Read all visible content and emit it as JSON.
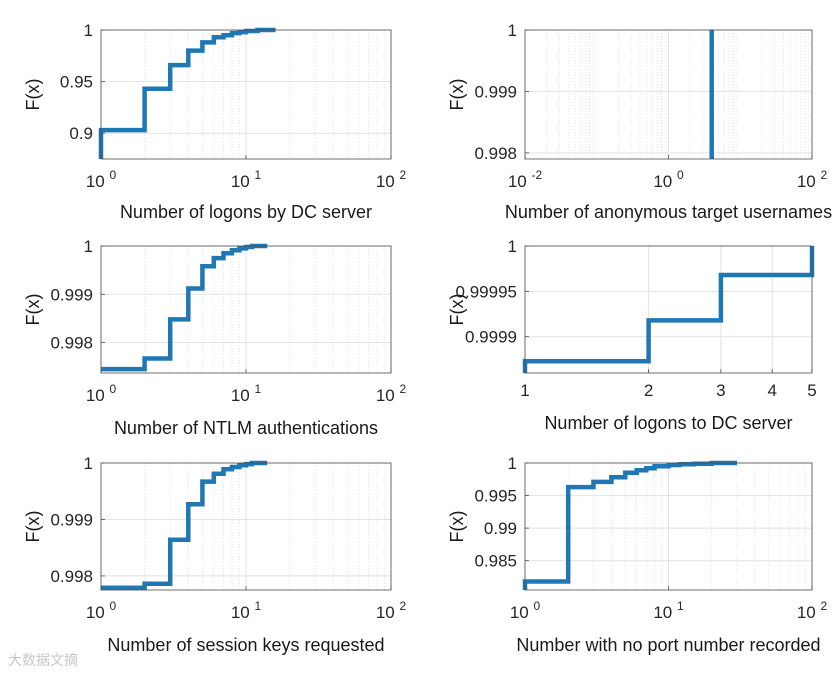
{
  "chart_data": [
    {
      "type": "line",
      "step": true,
      "xlabel": "Number of logons by DC server",
      "ylabel": "F(x)",
      "xscale": "log",
      "xlim": [
        1,
        100
      ],
      "xticks": [
        {
          "v": 1,
          "base": "10",
          "exp": "0"
        },
        {
          "v": 10,
          "base": "10",
          "exp": "1"
        },
        {
          "v": 100,
          "base": "10",
          "exp": "2"
        }
      ],
      "ylim": [
        0.875,
        1.0
      ],
      "yticks": [
        {
          "v": 0.9,
          "label": "0.9"
        },
        {
          "v": 0.95,
          "label": "0.95"
        },
        {
          "v": 1.0,
          "label": "1"
        }
      ],
      "grid": true,
      "color": "#1f77b4",
      "x": [
        1,
        1,
        2,
        3,
        4,
        5,
        6,
        7,
        8,
        9,
        10,
        12,
        16
      ],
      "y": [
        0.875,
        0.903,
        0.943,
        0.966,
        0.98,
        0.988,
        0.993,
        0.995,
        0.997,
        0.998,
        0.999,
        1.0,
        1.0
      ]
    },
    {
      "type": "line",
      "step": true,
      "xlabel": "Number of anonymous target usernames",
      "ylabel": "F(x)",
      "xscale": "log",
      "xlim": [
        0.01,
        100
      ],
      "xticks": [
        {
          "v": 0.01,
          "base": "10",
          "exp": "-2"
        },
        {
          "v": 1,
          "base": "10",
          "exp": "0"
        },
        {
          "v": 100,
          "base": "10",
          "exp": "2"
        }
      ],
      "ylim": [
        0.9979,
        1.0
      ],
      "yticks": [
        {
          "v": 0.998,
          "label": "0.998"
        },
        {
          "v": 0.999,
          "label": "0.999"
        },
        {
          "v": 1.0,
          "label": "1"
        }
      ],
      "grid": true,
      "color": "#1f77b4",
      "x": [
        4,
        4
      ],
      "y": [
        0.9979,
        1.0
      ]
    },
    {
      "type": "line",
      "step": true,
      "xlabel": "Number of NTLM authentications",
      "ylabel": "F(x)",
      "xscale": "log",
      "xlim": [
        1,
        100
      ],
      "xticks": [
        {
          "v": 1,
          "base": "10",
          "exp": "0"
        },
        {
          "v": 10,
          "base": "10",
          "exp": "1"
        },
        {
          "v": 100,
          "base": "10",
          "exp": "2"
        }
      ],
      "ylim": [
        0.99737,
        1.0
      ],
      "yticks": [
        {
          "v": 0.998,
          "label": "0.998"
        },
        {
          "v": 0.999,
          "label": "0.999"
        },
        {
          "v": 1.0,
          "label": "1"
        }
      ],
      "grid": true,
      "color": "#1f77b4",
      "x": [
        1,
        2,
        3,
        4,
        5,
        6,
        7,
        8,
        9,
        10,
        11,
        14
      ],
      "y": [
        0.99745,
        0.99767,
        0.99848,
        0.99912,
        0.99958,
        0.99975,
        0.99985,
        0.99991,
        0.99995,
        0.99998,
        1.0,
        1.0
      ]
    },
    {
      "type": "line",
      "step": true,
      "xlabel": "Number of logons to DC server",
      "ylabel": "F(x)",
      "xscale": "log",
      "xlim": [
        1,
        5
      ],
      "xticks": [
        {
          "v": 1,
          "label": "1"
        },
        {
          "v": 2,
          "label": "2"
        },
        {
          "v": 3,
          "label": "3"
        },
        {
          "v": 4,
          "label": "4"
        },
        {
          "v": 5,
          "label": "5"
        }
      ],
      "ylim": [
        0.99986,
        1.0
      ],
      "yticks": [
        {
          "v": 0.9999,
          "label": "0.9999"
        },
        {
          "v": 0.99995,
          "label": "0.99995"
        },
        {
          "v": 1.0,
          "label": "1"
        }
      ],
      "grid": true,
      "color": "#1f77b4",
      "x": [
        1,
        1,
        2,
        3,
        5,
        5
      ],
      "y": [
        0.99986,
        0.999873,
        0.999918,
        0.999968,
        0.999968,
        1.0
      ]
    },
    {
      "type": "line",
      "step": true,
      "xlabel": "Number of session keys requested",
      "ylabel": "F(x)",
      "xscale": "log",
      "xlim": [
        1,
        100
      ],
      "xticks": [
        {
          "v": 1,
          "base": "10",
          "exp": "0"
        },
        {
          "v": 10,
          "base": "10",
          "exp": "1"
        },
        {
          "v": 100,
          "base": "10",
          "exp": "2"
        }
      ],
      "ylim": [
        0.99775,
        1.0
      ],
      "yticks": [
        {
          "v": 0.998,
          "label": "0.998"
        },
        {
          "v": 0.999,
          "label": "0.999"
        },
        {
          "v": 1.0,
          "label": "1"
        }
      ],
      "grid": true,
      "color": "#1f77b4",
      "x": [
        1,
        2,
        3,
        4,
        5,
        6,
        7,
        8,
        9,
        10,
        11,
        14
      ],
      "y": [
        0.99779,
        0.99786,
        0.99864,
        0.99927,
        0.99967,
        0.99981,
        0.99989,
        0.99993,
        0.99996,
        0.99998,
        1.0,
        1.0
      ]
    },
    {
      "type": "line",
      "step": true,
      "xlabel": "Number with no port number recorded",
      "ylabel": "F(x)",
      "xscale": "log",
      "xlim": [
        1,
        100
      ],
      "xticks": [
        {
          "v": 1,
          "base": "10",
          "exp": "0"
        },
        {
          "v": 10,
          "base": "10",
          "exp": "1"
        },
        {
          "v": 100,
          "base": "10",
          "exp": "2"
        }
      ],
      "ylim": [
        0.9805,
        1.0
      ],
      "yticks": [
        {
          "v": 0.985,
          "label": "0.985"
        },
        {
          "v": 0.99,
          "label": "0.99"
        },
        {
          "v": 0.995,
          "label": "0.995"
        },
        {
          "v": 1.0,
          "label": "1"
        }
      ],
      "grid": true,
      "color": "#1f77b4",
      "x": [
        1,
        1,
        2,
        3,
        4,
        5,
        6,
        7,
        8,
        10,
        12,
        15,
        20,
        30
      ],
      "y": [
        0.9805,
        0.9818,
        0.9963,
        0.9971,
        0.9978,
        0.9985,
        0.9989,
        0.9992,
        0.9995,
        0.9997,
        0.9998,
        0.9999,
        1.0,
        1.0
      ]
    }
  ],
  "watermark": "大数据文摘"
}
